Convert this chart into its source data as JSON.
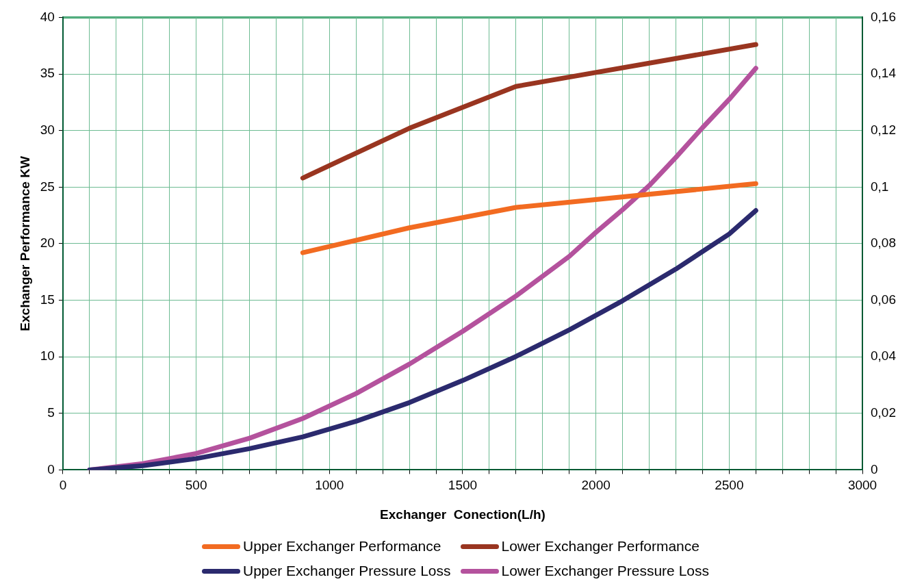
{
  "chart_data": {
    "type": "line",
    "xlabel": "Exchanger  Conection(L/h)",
    "ylabel": "Exchanger Performance KW",
    "xlim": [
      0,
      3000
    ],
    "xticks": [
      0,
      {
        "value": 100,
        "label": null
      },
      {
        "value": 200,
        "label": null
      },
      {
        "value": 300,
        "label": null
      },
      {
        "value": 400,
        "label": null
      },
      500,
      {
        "value": 600,
        "label": null
      },
      {
        "value": 700,
        "label": null
      },
      {
        "value": 800,
        "label": null
      },
      {
        "value": 900,
        "label": null
      },
      1000,
      {
        "value": 1100,
        "label": null
      },
      {
        "value": 1200,
        "label": null
      },
      {
        "value": 1300,
        "label": null
      },
      {
        "value": 1400,
        "label": null
      },
      1500,
      {
        "value": 1600,
        "label": null
      },
      {
        "value": 1700,
        "label": null
      },
      {
        "value": 1800,
        "label": null
      },
      {
        "value": 1900,
        "label": null
      },
      2000,
      {
        "value": 2100,
        "label": null
      },
      {
        "value": 2200,
        "label": null
      },
      {
        "value": 2300,
        "label": null
      },
      {
        "value": 2400,
        "label": null
      },
      2500,
      {
        "value": 2600,
        "label": null
      },
      {
        "value": 2700,
        "label": null
      },
      {
        "value": 2800,
        "label": null
      },
      {
        "value": 2900,
        "label": null
      },
      3000
    ],
    "ylim": [
      0,
      40
    ],
    "yticks": [
      0,
      5,
      10,
      15,
      20,
      25,
      30,
      35,
      40
    ],
    "y2lim": [
      0,
      0.16
    ],
    "y2ticks": [
      0,
      {
        "value": 0.02,
        "label": "0,02"
      },
      {
        "value": 0.04,
        "label": "0,04"
      },
      {
        "value": 0.06,
        "label": "0,06"
      },
      {
        "value": 0.08,
        "label": "0,08"
      },
      {
        "value": 0.1,
        "label": "0,1"
      },
      {
        "value": 0.12,
        "label": "0,12"
      },
      {
        "value": 0.14,
        "label": "0,14"
      },
      {
        "value": 0.16,
        "label": "0,16"
      }
    ],
    "grid": true,
    "legend": "bottom",
    "marker": "none",
    "line_style": "solid",
    "series": [
      {
        "name": "Upper Exchanger Performance",
        "color": "#f26b21",
        "x": [
          900,
          1300,
          1700,
          2600
        ],
        "values": [
          19.2,
          21.4,
          23.2,
          25.3
        ]
      },
      {
        "name": "Lower Exchanger Performance",
        "color": "#993520",
        "x": [
          900,
          1300,
          1700,
          2600
        ],
        "values": [
          25.8,
          30.2,
          33.9,
          37.6
        ]
      },
      {
        "name": "Upper Exchanger Pressure Loss",
        "color": "#2b2a6e",
        "axis": "y2",
        "x": [
          100,
          300,
          500,
          700,
          900,
          1100,
          1300,
          1500,
          1700,
          1900,
          2100,
          2300,
          2500,
          2600
        ],
        "values": [
          0,
          0.0015,
          0.004,
          0.0075,
          0.0117,
          0.0172,
          0.0238,
          0.0316,
          0.0401,
          0.0495,
          0.0598,
          0.071,
          0.0834,
          0.0917
        ]
      },
      {
        "name": "Lower Exchanger Pressure Loss",
        "color": "#b4529d",
        "axis": "y2",
        "x": [
          100,
          300,
          500,
          700,
          900,
          1100,
          1300,
          1500,
          1700,
          1900,
          2000,
          2100,
          2200,
          2300,
          2400,
          2500,
          2600
        ],
        "values": [
          0,
          0.0022,
          0.0058,
          0.0112,
          0.0182,
          0.027,
          0.0374,
          0.049,
          0.0615,
          0.0755,
          0.084,
          0.092,
          0.1005,
          0.1105,
          0.121,
          0.131,
          0.142
        ]
      }
    ]
  }
}
